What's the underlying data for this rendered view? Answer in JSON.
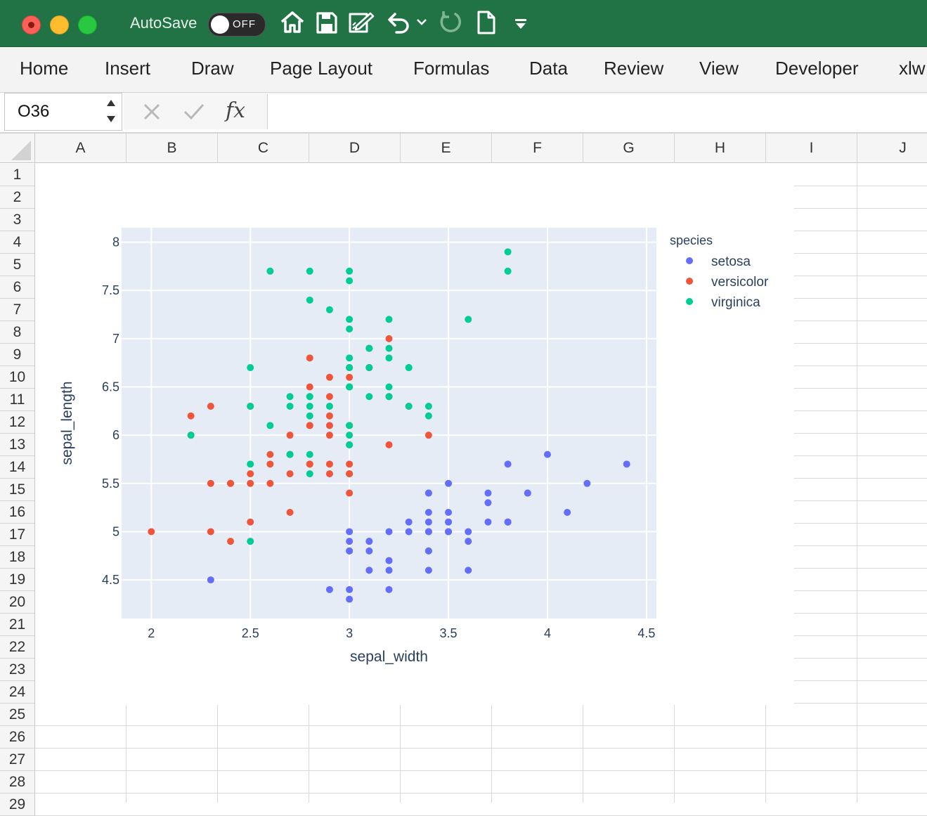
{
  "window": {
    "autosave_label": "AutoSave",
    "autosave_state": "OFF",
    "quick_access_icons": [
      "home-icon",
      "save-icon",
      "edit-document-icon",
      "undo-icon",
      "chevron-down-icon",
      "redo-icon",
      "new-document-icon",
      "customize-toolbar-icon"
    ]
  },
  "ribbon": {
    "tabs": [
      "Home",
      "Insert",
      "Draw",
      "Page Layout",
      "Formulas",
      "Data",
      "Review",
      "View",
      "Developer",
      "xlw"
    ]
  },
  "formula_bar": {
    "name_box": "O36",
    "fx_label": "fx",
    "formula": ""
  },
  "sheet": {
    "columns": [
      "A",
      "B",
      "C",
      "D",
      "E",
      "F",
      "G",
      "H",
      "I",
      "J"
    ],
    "rows": [
      "1",
      "2",
      "3",
      "4",
      "5",
      "6",
      "7",
      "8",
      "9",
      "10",
      "11",
      "12",
      "13",
      "14",
      "15",
      "16",
      "17",
      "18",
      "19",
      "20",
      "21",
      "22",
      "23",
      "24",
      "25",
      "26",
      "27",
      "28",
      "29"
    ]
  },
  "chart_data": {
    "type": "scatter",
    "title": "",
    "xlabel": "sepal_width",
    "ylabel": "sepal_length",
    "xlim": [
      1.85,
      4.55
    ],
    "ylim": [
      4.1,
      8.15
    ],
    "xticks": [
      2,
      2.5,
      3,
      3.5,
      4,
      4.5
    ],
    "xtick_labels": [
      "2",
      "2.5",
      "3",
      "3.5",
      "4",
      "4.5"
    ],
    "yticks": [
      4.5,
      5,
      5.5,
      6,
      6.5,
      7,
      7.5,
      8
    ],
    "ytick_labels": [
      "4.5",
      "5",
      "5.5",
      "6",
      "6.5",
      "7",
      "7.5",
      "8"
    ],
    "grid": true,
    "plot_background": "#e5ecf6",
    "legend_title": "species",
    "legend_position": "right",
    "series": [
      {
        "name": "setosa",
        "color": "#636efa",
        "points": [
          [
            3.5,
            5.1
          ],
          [
            3.0,
            4.9
          ],
          [
            3.2,
            4.7
          ],
          [
            3.1,
            4.6
          ],
          [
            3.6,
            5.0
          ],
          [
            3.9,
            5.4
          ],
          [
            3.4,
            4.6
          ],
          [
            3.4,
            5.0
          ],
          [
            2.9,
            4.4
          ],
          [
            3.1,
            4.9
          ],
          [
            3.7,
            5.4
          ],
          [
            3.4,
            4.8
          ],
          [
            3.0,
            4.8
          ],
          [
            3.0,
            4.3
          ],
          [
            4.0,
            5.8
          ],
          [
            4.4,
            5.7
          ],
          [
            3.9,
            5.4
          ],
          [
            3.5,
            5.1
          ],
          [
            3.8,
            5.7
          ],
          [
            3.8,
            5.1
          ],
          [
            3.4,
            5.4
          ],
          [
            3.7,
            5.1
          ],
          [
            3.6,
            4.6
          ],
          [
            3.3,
            5.1
          ],
          [
            3.4,
            4.8
          ],
          [
            3.0,
            5.0
          ],
          [
            3.4,
            5.0
          ],
          [
            3.5,
            5.2
          ],
          [
            3.4,
            5.2
          ],
          [
            3.2,
            4.7
          ],
          [
            3.1,
            4.8
          ],
          [
            3.4,
            5.4
          ],
          [
            4.1,
            5.2
          ],
          [
            4.2,
            5.5
          ],
          [
            3.1,
            4.9
          ],
          [
            3.2,
            5.0
          ],
          [
            3.5,
            5.5
          ],
          [
            3.6,
            4.9
          ],
          [
            3.0,
            4.4
          ],
          [
            3.4,
            5.1
          ],
          [
            3.5,
            5.0
          ],
          [
            2.3,
            4.5
          ],
          [
            3.2,
            4.4
          ],
          [
            3.5,
            5.0
          ],
          [
            3.8,
            5.1
          ],
          [
            3.0,
            4.8
          ],
          [
            3.8,
            5.1
          ],
          [
            3.2,
            4.6
          ],
          [
            3.7,
            5.3
          ],
          [
            3.3,
            5.0
          ]
        ]
      },
      {
        "name": "versicolor",
        "color": "#ef553b",
        "points": [
          [
            3.2,
            7.0
          ],
          [
            3.2,
            6.4
          ],
          [
            3.1,
            6.9
          ],
          [
            2.3,
            5.5
          ],
          [
            2.8,
            6.5
          ],
          [
            2.8,
            5.7
          ],
          [
            3.3,
            6.3
          ],
          [
            2.4,
            4.9
          ],
          [
            2.9,
            6.6
          ],
          [
            2.7,
            5.2
          ],
          [
            2.0,
            5.0
          ],
          [
            3.0,
            5.9
          ],
          [
            2.2,
            6.0
          ],
          [
            2.9,
            6.1
          ],
          [
            2.9,
            5.6
          ],
          [
            3.1,
            6.7
          ],
          [
            3.0,
            5.6
          ],
          [
            2.7,
            5.8
          ],
          [
            2.2,
            6.2
          ],
          [
            2.5,
            5.6
          ],
          [
            3.2,
            5.9
          ],
          [
            2.8,
            6.1
          ],
          [
            2.5,
            6.3
          ],
          [
            2.8,
            6.1
          ],
          [
            2.9,
            6.4
          ],
          [
            3.0,
            6.6
          ],
          [
            2.8,
            6.8
          ],
          [
            3.0,
            6.7
          ],
          [
            2.9,
            6.0
          ],
          [
            2.6,
            5.7
          ],
          [
            2.4,
            5.5
          ],
          [
            2.4,
            5.5
          ],
          [
            2.7,
            5.8
          ],
          [
            2.7,
            6.0
          ],
          [
            3.0,
            5.4
          ],
          [
            3.4,
            6.0
          ],
          [
            3.1,
            6.7
          ],
          [
            2.3,
            6.3
          ],
          [
            3.0,
            5.6
          ],
          [
            2.5,
            5.5
          ],
          [
            2.6,
            5.5
          ],
          [
            3.0,
            6.1
          ],
          [
            2.6,
            5.8
          ],
          [
            2.3,
            5.0
          ],
          [
            2.7,
            5.6
          ],
          [
            3.0,
            5.7
          ],
          [
            2.9,
            5.7
          ],
          [
            2.9,
            6.2
          ],
          [
            2.5,
            5.1
          ],
          [
            2.8,
            5.7
          ]
        ]
      },
      {
        "name": "virginica",
        "color": "#00cc96",
        "points": [
          [
            3.3,
            6.3
          ],
          [
            2.7,
            5.8
          ],
          [
            3.0,
            7.1
          ],
          [
            2.9,
            6.3
          ],
          [
            3.0,
            6.5
          ],
          [
            3.0,
            7.6
          ],
          [
            2.5,
            4.9
          ],
          [
            2.9,
            7.3
          ],
          [
            2.5,
            6.7
          ],
          [
            3.6,
            7.2
          ],
          [
            3.2,
            6.5
          ],
          [
            2.7,
            6.4
          ],
          [
            3.0,
            6.8
          ],
          [
            2.5,
            5.7
          ],
          [
            2.8,
            5.8
          ],
          [
            3.2,
            6.4
          ],
          [
            3.0,
            6.5
          ],
          [
            3.8,
            7.7
          ],
          [
            2.6,
            7.7
          ],
          [
            2.2,
            6.0
          ],
          [
            3.2,
            6.9
          ],
          [
            2.8,
            5.6
          ],
          [
            2.8,
            7.7
          ],
          [
            2.7,
            6.3
          ],
          [
            3.3,
            6.7
          ],
          [
            3.2,
            7.2
          ],
          [
            2.8,
            6.2
          ],
          [
            3.0,
            6.1
          ],
          [
            2.8,
            6.4
          ],
          [
            3.0,
            7.2
          ],
          [
            2.8,
            7.4
          ],
          [
            3.8,
            7.9
          ],
          [
            2.8,
            6.4
          ],
          [
            2.8,
            6.3
          ],
          [
            2.6,
            6.1
          ],
          [
            3.0,
            7.7
          ],
          [
            3.4,
            6.3
          ],
          [
            3.1,
            6.4
          ],
          [
            3.0,
            6.0
          ],
          [
            3.1,
            6.9
          ],
          [
            3.1,
            6.7
          ],
          [
            3.1,
            6.9
          ],
          [
            2.7,
            5.8
          ],
          [
            3.2,
            6.8
          ],
          [
            3.3,
            6.7
          ],
          [
            3.0,
            6.7
          ],
          [
            2.5,
            6.3
          ],
          [
            3.0,
            6.5
          ],
          [
            3.4,
            6.2
          ],
          [
            3.0,
            5.9
          ]
        ]
      }
    ]
  }
}
